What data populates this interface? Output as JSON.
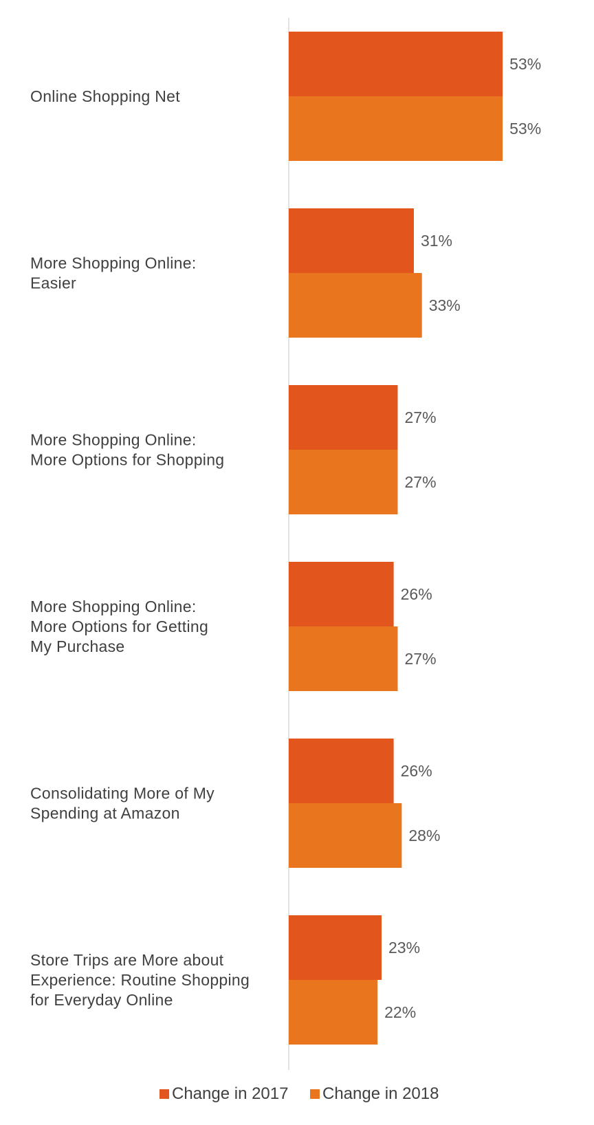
{
  "chart_data": {
    "type": "bar",
    "orientation": "horizontal",
    "categories": [
      [
        "Online Shopping Net"
      ],
      [
        "More Shopping Online:",
        "Easier"
      ],
      [
        "More Shopping Online:",
        "More Options for Shopping"
      ],
      [
        "More Shopping Online:",
        "More Options for Getting",
        "My Purchase"
      ],
      [
        "Consolidating More of My",
        "Spending at Amazon"
      ],
      [
        "Store Trips are More about",
        "Experience: Routine Shopping",
        "for Everyday Online"
      ]
    ],
    "series": [
      {
        "name": "Change in 2017",
        "color": "#E2561D",
        "values": [
          53,
          31,
          27,
          26,
          26,
          23
        ],
        "labels": [
          "53%",
          "31%",
          "27%",
          "26%",
          "26%",
          "23%"
        ]
      },
      {
        "name": "Change in 2018",
        "color": "#E9761F",
        "values": [
          53,
          33,
          27,
          27,
          28,
          22
        ],
        "labels": [
          "53%",
          "33%",
          "27%",
          "27%",
          "28%",
          "22%"
        ]
      }
    ],
    "xlim": [
      0,
      60
    ],
    "title": "",
    "xlabel": "",
    "ylabel": "",
    "grid": false,
    "legend_position": "bottom"
  }
}
